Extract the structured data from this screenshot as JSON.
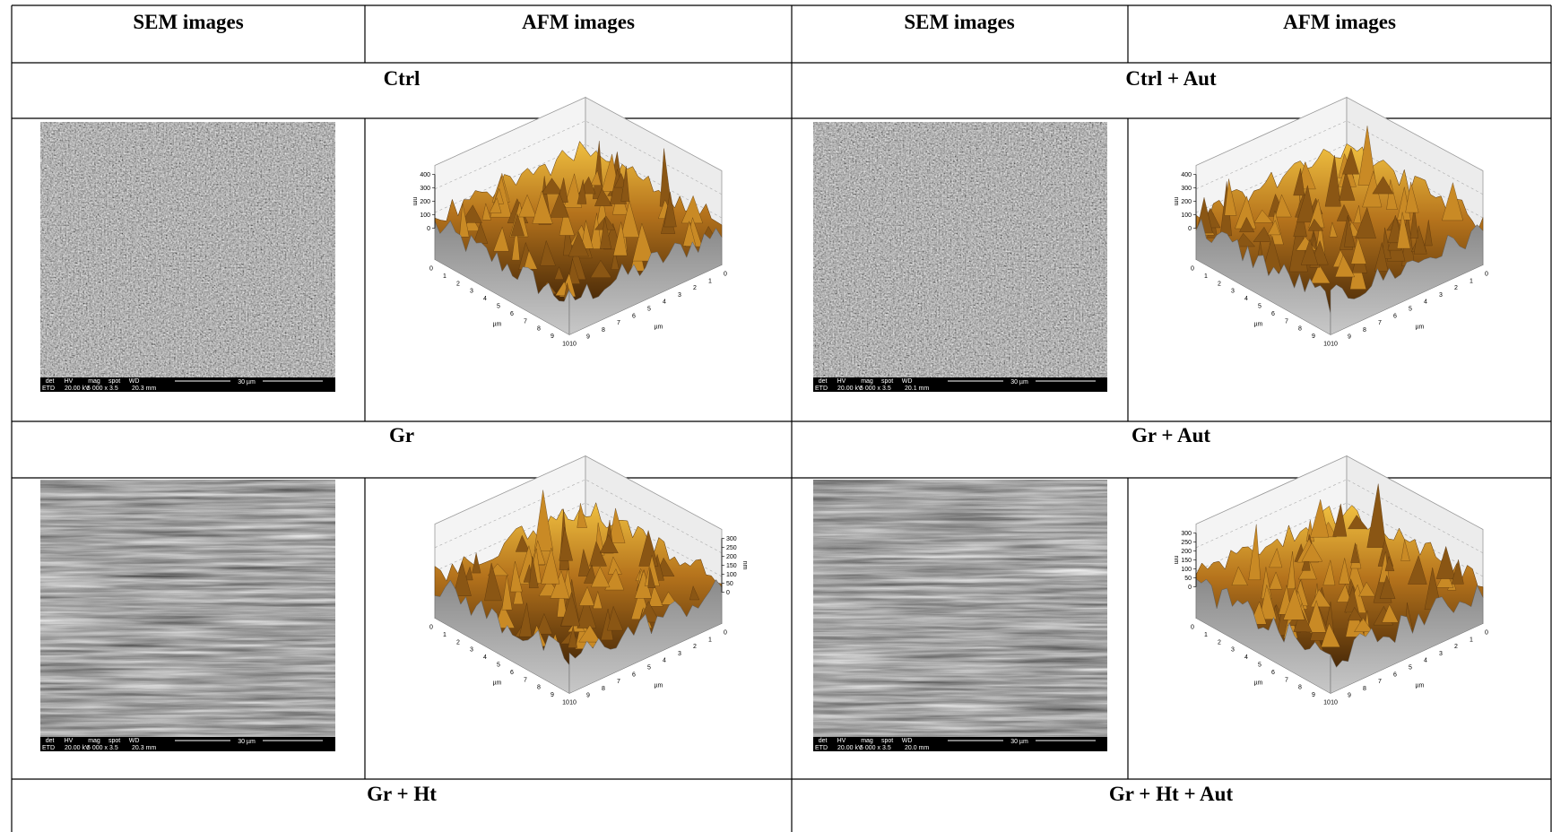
{
  "header": {
    "columns": [
      "SEM images",
      "AFM images",
      "SEM images",
      "AFM images"
    ]
  },
  "rows": [
    {
      "groups": [
        {
          "label": "Ctrl",
          "sem": {
            "fields": [
              "det",
              "HV",
              "mag",
              "spot",
              "WD"
            ],
            "values": [
              "ETD",
              "20.00 kV",
              "5 000 x",
              "3.5",
              "20.3 mm"
            ],
            "scale": "30 µm"
          },
          "afm": {
            "z_unit": "nm",
            "zticks": [
              0,
              100,
              200,
              300,
              400
            ],
            "xy_unit": "µm",
            "xyticks": [
              0,
              1,
              2,
              3,
              4,
              5,
              6,
              7,
              8,
              9,
              10
            ]
          }
        },
        {
          "label": "Ctrl + Aut",
          "sem": {
            "fields": [
              "det",
              "HV",
              "mag",
              "spot",
              "WD"
            ],
            "values": [
              "ETD",
              "20.00 kV",
              "5 000 x",
              "3.5",
              "20.1 mm"
            ],
            "scale": "30 µm"
          },
          "afm": {
            "z_unit": "nm",
            "zticks": [
              0,
              100,
              200,
              300,
              400
            ],
            "xy_unit": "µm",
            "xyticks": [
              0,
              1,
              2,
              3,
              4,
              5,
              6,
              7,
              8,
              9,
              10
            ]
          }
        }
      ]
    },
    {
      "groups": [
        {
          "label": "Gr",
          "sem": {
            "fields": [
              "det",
              "HV",
              "mag",
              "spot",
              "WD"
            ],
            "values": [
              "ETD",
              "20.00 kV",
              "5 000 x",
              "3.5",
              "20.3 mm"
            ],
            "scale": "30 µm"
          },
          "afm": {
            "z_unit": "nm",
            "zticks": [
              0,
              50,
              100,
              150,
              200,
              250,
              300
            ],
            "xy_unit": "µm",
            "xyticks": [
              0,
              1,
              2,
              3,
              4,
              5,
              6,
              7,
              8,
              9,
              10
            ]
          }
        },
        {
          "label": "Gr + Aut",
          "sem": {
            "fields": [
              "det",
              "HV",
              "mag",
              "spot",
              "WD"
            ],
            "values": [
              "ETD",
              "20.00 kV",
              "5 000 x",
              "3.5",
              "20.0 mm"
            ],
            "scale": "30 µm"
          },
          "afm": {
            "z_unit": "nm",
            "zticks": [
              0,
              50,
              100,
              150,
              200,
              250,
              300
            ],
            "xy_unit": "µm",
            "xyticks": [
              0,
              1,
              2,
              3,
              4,
              5,
              6,
              7,
              8,
              9,
              10
            ]
          }
        }
      ]
    },
    {
      "groups": [
        {
          "label": "Gr + Ht"
        },
        {
          "label": "Gr + Ht + Aut"
        }
      ]
    }
  ]
}
